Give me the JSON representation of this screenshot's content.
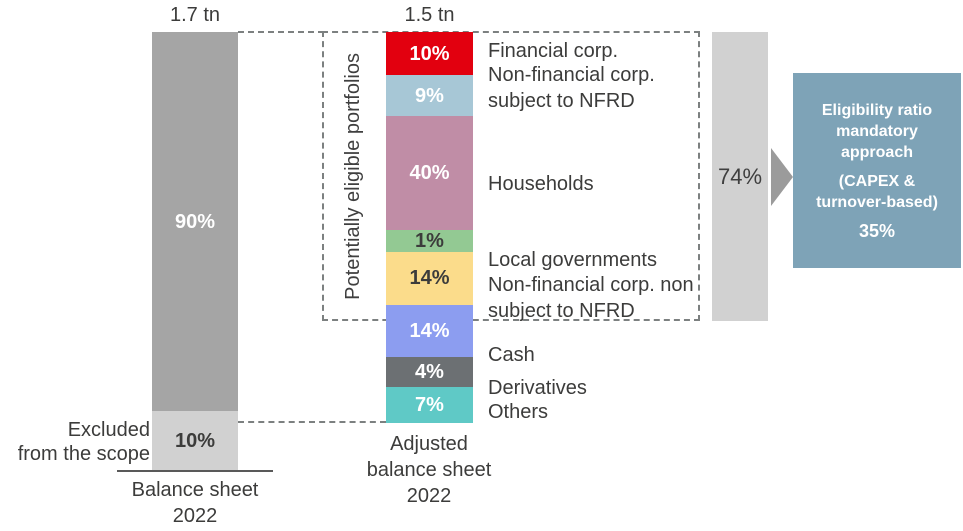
{
  "chart_data": {
    "type": "bar",
    "subtype": "stacked-bar-eligibility-flow",
    "grid": false,
    "legend": "none",
    "bars": [
      {
        "name": "balance-sheet-2022",
        "total_label": "1.7 tn",
        "caption_lines": [
          "Balance sheet",
          "2022"
        ],
        "excluded_note_lines": [
          "Excluded",
          "from the scope"
        ],
        "segments": [
          {
            "label": "90%",
            "value": 90,
            "color": "#a5a5a5",
            "text_color": "#ffffff"
          },
          {
            "label": "10%",
            "value": 10,
            "color": "#d1d1d1",
            "text_color": "#3c3c3b",
            "category": "Excluded from the scope"
          }
        ]
      },
      {
        "name": "adjusted-balance-sheet-2022",
        "total_label": "1.5 tn",
        "caption_lines": [
          "Adjusted",
          "balance sheet",
          "2022"
        ],
        "segments": [
          {
            "label": "10%",
            "value": 10,
            "color": "#e2000f",
            "text_color": "#ffffff",
            "category": "Financial corp."
          },
          {
            "label": "9%",
            "value": 9,
            "color": "#a7c7d6",
            "text_color": "#ffffff",
            "category": "Non-financial corp. subject to NFRD"
          },
          {
            "label": "40%",
            "value": 40,
            "color": "#c08da6",
            "text_color": "#ffffff",
            "category": "Households"
          },
          {
            "label": "1%",
            "value": 1,
            "color": "#93c993",
            "text_color": "#3c3c3b",
            "category": "Local governments"
          },
          {
            "label": "14%",
            "value": 14,
            "color": "#fbdc8b",
            "text_color": "#3c3c3b",
            "category": "Non-financial corp. non subject to NFRD"
          },
          {
            "label": "14%",
            "value": 14,
            "color": "#8c9df0",
            "text_color": "#ffffff",
            "category": "Cash"
          },
          {
            "label": "4%",
            "value": 4,
            "color": "#6c7073",
            "text_color": "#ffffff",
            "category": "Derivatives"
          },
          {
            "label": "7%",
            "value": 7,
            "color": "#5fc9c6",
            "text_color": "#ffffff",
            "category": "Others"
          }
        ]
      }
    ],
    "eligible_group": {
      "label": "Potentially eligible portfolios",
      "summary": {
        "label": "74%",
        "value": 74,
        "color": "#d1d1d1"
      }
    },
    "result_box": {
      "color": "#7ea3b7",
      "title_lines": [
        "Eligibility ratio",
        "mandatory",
        "approach"
      ],
      "subtitle_lines": [
        "(CAPEX &",
        "turnover-based)"
      ],
      "value": "35%",
      "value_num": 35
    },
    "dashed_line_color": "#7c8080",
    "arrow_color": "#9b9b9b"
  }
}
